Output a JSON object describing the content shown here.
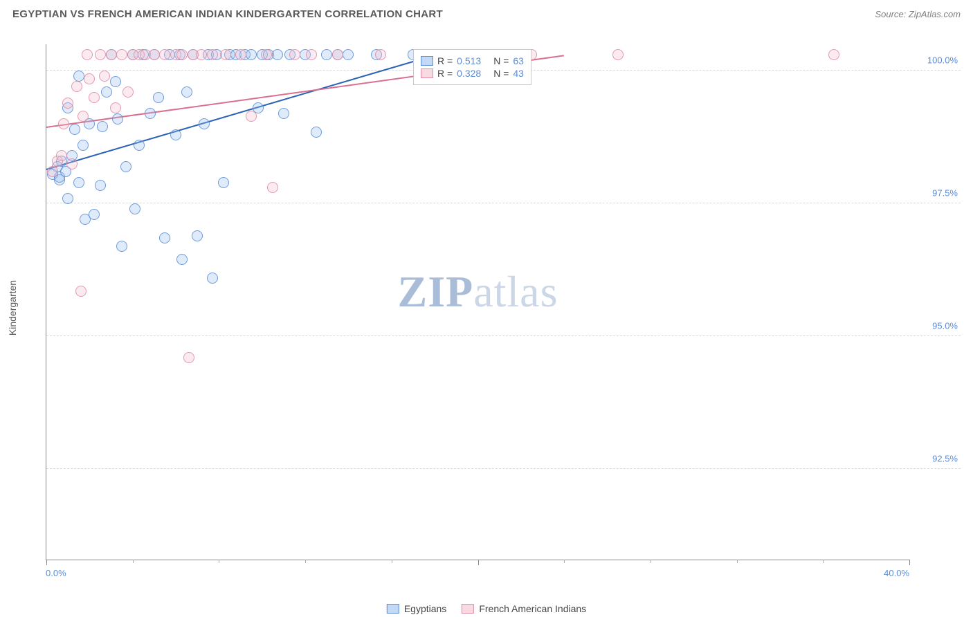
{
  "title": "EGYPTIAN VS FRENCH AMERICAN INDIAN KINDERGARTEN CORRELATION CHART",
  "source": "Source: ZipAtlas.com",
  "ylabel": "Kindergarten",
  "watermark_zip": "ZIP",
  "watermark_atlas": "atlas",
  "chart": {
    "type": "scatter",
    "xlim": [
      0,
      40
    ],
    "ylim": [
      90.8,
      100.5
    ],
    "xtick_labels": {
      "left": "0.0%",
      "right": "40.0%"
    },
    "xtick_major_positions": [
      0,
      20,
      40
    ],
    "xtick_minor_positions": [
      4,
      8,
      12,
      16,
      24,
      28,
      32,
      36
    ],
    "ytick_positions": [
      92.5,
      95.0,
      97.5,
      100.0
    ],
    "ytick_labels": [
      "92.5%",
      "95.0%",
      "97.5%",
      "100.0%"
    ],
    "grid_color": "#d8d8d8",
    "background_color": "#ffffff",
    "marker_radius": 8,
    "marker_opacity_fill": 0.32,
    "marker_opacity_stroke": 0.85,
    "series": [
      {
        "key": "egyptians",
        "label": "Egyptians",
        "color_fill": "#9cc0ee",
        "color_stroke": "#5b8dd6",
        "R": "0.513",
        "N": "63",
        "regression": {
          "x1": 0,
          "y1": 98.15,
          "x2": 18,
          "y2": 100.3,
          "color": "#2a63b6",
          "width": 2
        },
        "points": [
          [
            0.3,
            98.05
          ],
          [
            0.5,
            98.2
          ],
          [
            0.6,
            97.95
          ],
          [
            0.7,
            98.3
          ],
          [
            0.6,
            98.0
          ],
          [
            0.9,
            98.1
          ],
          [
            1.0,
            97.6
          ],
          [
            1.0,
            99.3
          ],
          [
            1.2,
            98.4
          ],
          [
            1.3,
            98.9
          ],
          [
            1.5,
            97.9
          ],
          [
            1.5,
            99.9
          ],
          [
            1.7,
            98.6
          ],
          [
            1.8,
            97.2
          ],
          [
            2.0,
            99.0
          ],
          [
            2.2,
            97.3
          ],
          [
            2.5,
            97.85
          ],
          [
            2.6,
            98.95
          ],
          [
            2.8,
            99.6
          ],
          [
            3.0,
            100.3
          ],
          [
            3.2,
            99.8
          ],
          [
            3.3,
            99.1
          ],
          [
            3.5,
            96.7
          ],
          [
            3.7,
            98.2
          ],
          [
            4.0,
            100.3
          ],
          [
            4.1,
            97.4
          ],
          [
            4.3,
            98.6
          ],
          [
            4.5,
            100.3
          ],
          [
            4.8,
            99.2
          ],
          [
            5.0,
            100.3
          ],
          [
            5.2,
            99.5
          ],
          [
            5.5,
            96.85
          ],
          [
            5.7,
            100.3
          ],
          [
            6.0,
            98.8
          ],
          [
            6.2,
            100.3
          ],
          [
            6.3,
            96.45
          ],
          [
            6.5,
            99.6
          ],
          [
            6.8,
            100.3
          ],
          [
            7.0,
            96.9
          ],
          [
            7.3,
            99.0
          ],
          [
            7.5,
            100.3
          ],
          [
            7.7,
            96.1
          ],
          [
            7.9,
            100.3
          ],
          [
            8.2,
            97.9
          ],
          [
            8.5,
            100.3
          ],
          [
            8.8,
            100.3
          ],
          [
            9.2,
            100.3
          ],
          [
            9.5,
            100.3
          ],
          [
            9.8,
            99.3
          ],
          [
            10.0,
            100.3
          ],
          [
            10.3,
            100.3
          ],
          [
            10.7,
            100.3
          ],
          [
            11.0,
            99.2
          ],
          [
            11.3,
            100.3
          ],
          [
            12.0,
            100.3
          ],
          [
            12.5,
            98.85
          ],
          [
            13.0,
            100.3
          ],
          [
            13.5,
            100.3
          ],
          [
            14.0,
            100.3
          ],
          [
            15.3,
            100.3
          ],
          [
            17.0,
            100.3
          ],
          [
            19.5,
            100.3
          ],
          [
            20.3,
            100.3
          ]
        ]
      },
      {
        "key": "french_american_indians",
        "label": "French American Indians",
        "color_fill": "#f4c2cf",
        "color_stroke": "#e18aa2",
        "R": "0.328",
        "N": "43",
        "regression": {
          "x1": 0,
          "y1": 98.95,
          "x2": 24,
          "y2": 100.3,
          "color": "#d9708e",
          "width": 2
        },
        "points": [
          [
            0.3,
            98.1
          ],
          [
            0.5,
            98.3
          ],
          [
            0.7,
            98.4
          ],
          [
            0.8,
            99.0
          ],
          [
            1.0,
            99.4
          ],
          [
            1.2,
            98.25
          ],
          [
            1.4,
            99.7
          ],
          [
            1.6,
            95.85
          ],
          [
            1.7,
            99.15
          ],
          [
            1.9,
            100.3
          ],
          [
            2.0,
            99.85
          ],
          [
            2.2,
            99.5
          ],
          [
            2.5,
            100.3
          ],
          [
            2.7,
            99.9
          ],
          [
            3.0,
            100.3
          ],
          [
            3.2,
            99.3
          ],
          [
            3.5,
            100.3
          ],
          [
            3.8,
            99.6
          ],
          [
            4.0,
            100.3
          ],
          [
            4.3,
            100.3
          ],
          [
            4.6,
            100.3
          ],
          [
            5.0,
            100.3
          ],
          [
            5.5,
            100.3
          ],
          [
            6.0,
            100.3
          ],
          [
            6.3,
            100.3
          ],
          [
            6.6,
            94.6
          ],
          [
            6.8,
            100.3
          ],
          [
            7.2,
            100.3
          ],
          [
            7.7,
            100.3
          ],
          [
            8.3,
            100.3
          ],
          [
            9.0,
            100.3
          ],
          [
            9.5,
            99.15
          ],
          [
            10.2,
            100.3
          ],
          [
            10.5,
            97.8
          ],
          [
            11.5,
            100.3
          ],
          [
            12.3,
            100.3
          ],
          [
            13.5,
            100.3
          ],
          [
            15.5,
            100.3
          ],
          [
            19.5,
            99.9
          ],
          [
            21.0,
            100.3
          ],
          [
            22.5,
            100.3
          ],
          [
            26.5,
            100.3
          ],
          [
            36.5,
            100.3
          ]
        ]
      }
    ],
    "legend_stats_position": {
      "left_pct": 42.5,
      "top_pct": 1
    }
  }
}
